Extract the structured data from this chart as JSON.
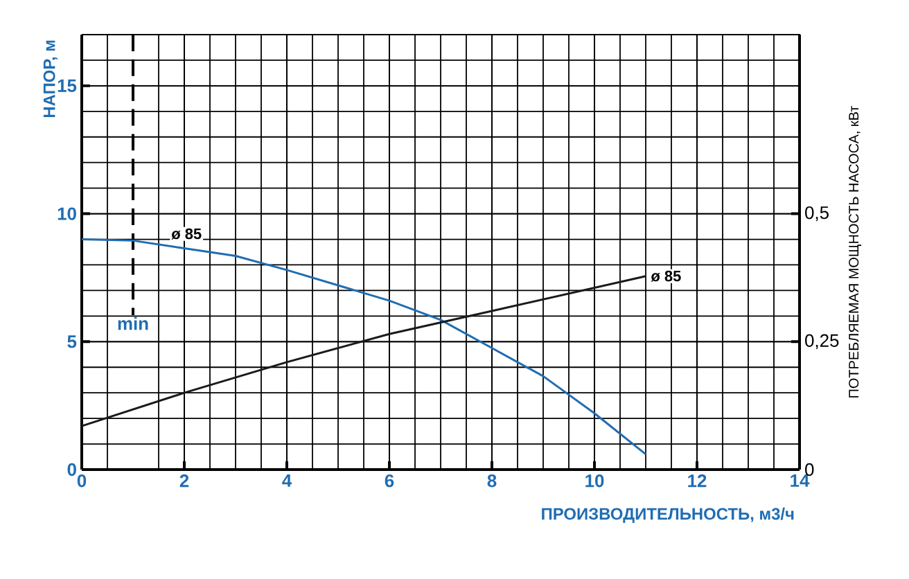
{
  "chart_data": {
    "type": "line",
    "xlabel": "ПРОИЗВОДИТЕЛЬНОСТЬ, м3/ч",
    "ylabel": "НАПОР, м",
    "y2label": "ПОТРЕБЛЯЕМАЯ МОЩНОСТЬ НАСОСА,  кВт",
    "xlim": [
      0,
      14
    ],
    "xticks": [
      0,
      2,
      4,
      6,
      8,
      10,
      12,
      14
    ],
    "ylim": [
      0,
      17
    ],
    "yticks": [
      0,
      5,
      10,
      15
    ],
    "y2lim": [
      0,
      0.85
    ],
    "y2ticks": [
      0,
      {
        "value": 0.25,
        "label": "0,25"
      },
      {
        "value": 0.5,
        "label": "0,5"
      }
    ],
    "grid": true,
    "marker": "none",
    "line_style": "solid",
    "ref_lines": [
      {
        "axis": "x",
        "value": 1,
        "label": "min",
        "line_style": "dashed",
        "color": "#000000"
      }
    ],
    "series": [
      {
        "name": "ø 85",
        "color": "#1f6db3",
        "x": [
          0,
          1,
          2,
          3,
          4,
          5,
          6,
          7,
          8,
          9,
          10,
          11
        ],
        "values": [
          9.0,
          8.95,
          8.65,
          8.35,
          7.8,
          7.2,
          6.6,
          5.85,
          4.75,
          3.65,
          2.2,
          0.6
        ]
      },
      {
        "name": "ø 85",
        "color": "#1a1a1a",
        "axis": "y2",
        "x": [
          0,
          2,
          4,
          6,
          8,
          11
        ],
        "values": [
          0.085,
          0.15,
          0.21,
          0.265,
          0.31,
          0.378
        ]
      }
    ]
  }
}
